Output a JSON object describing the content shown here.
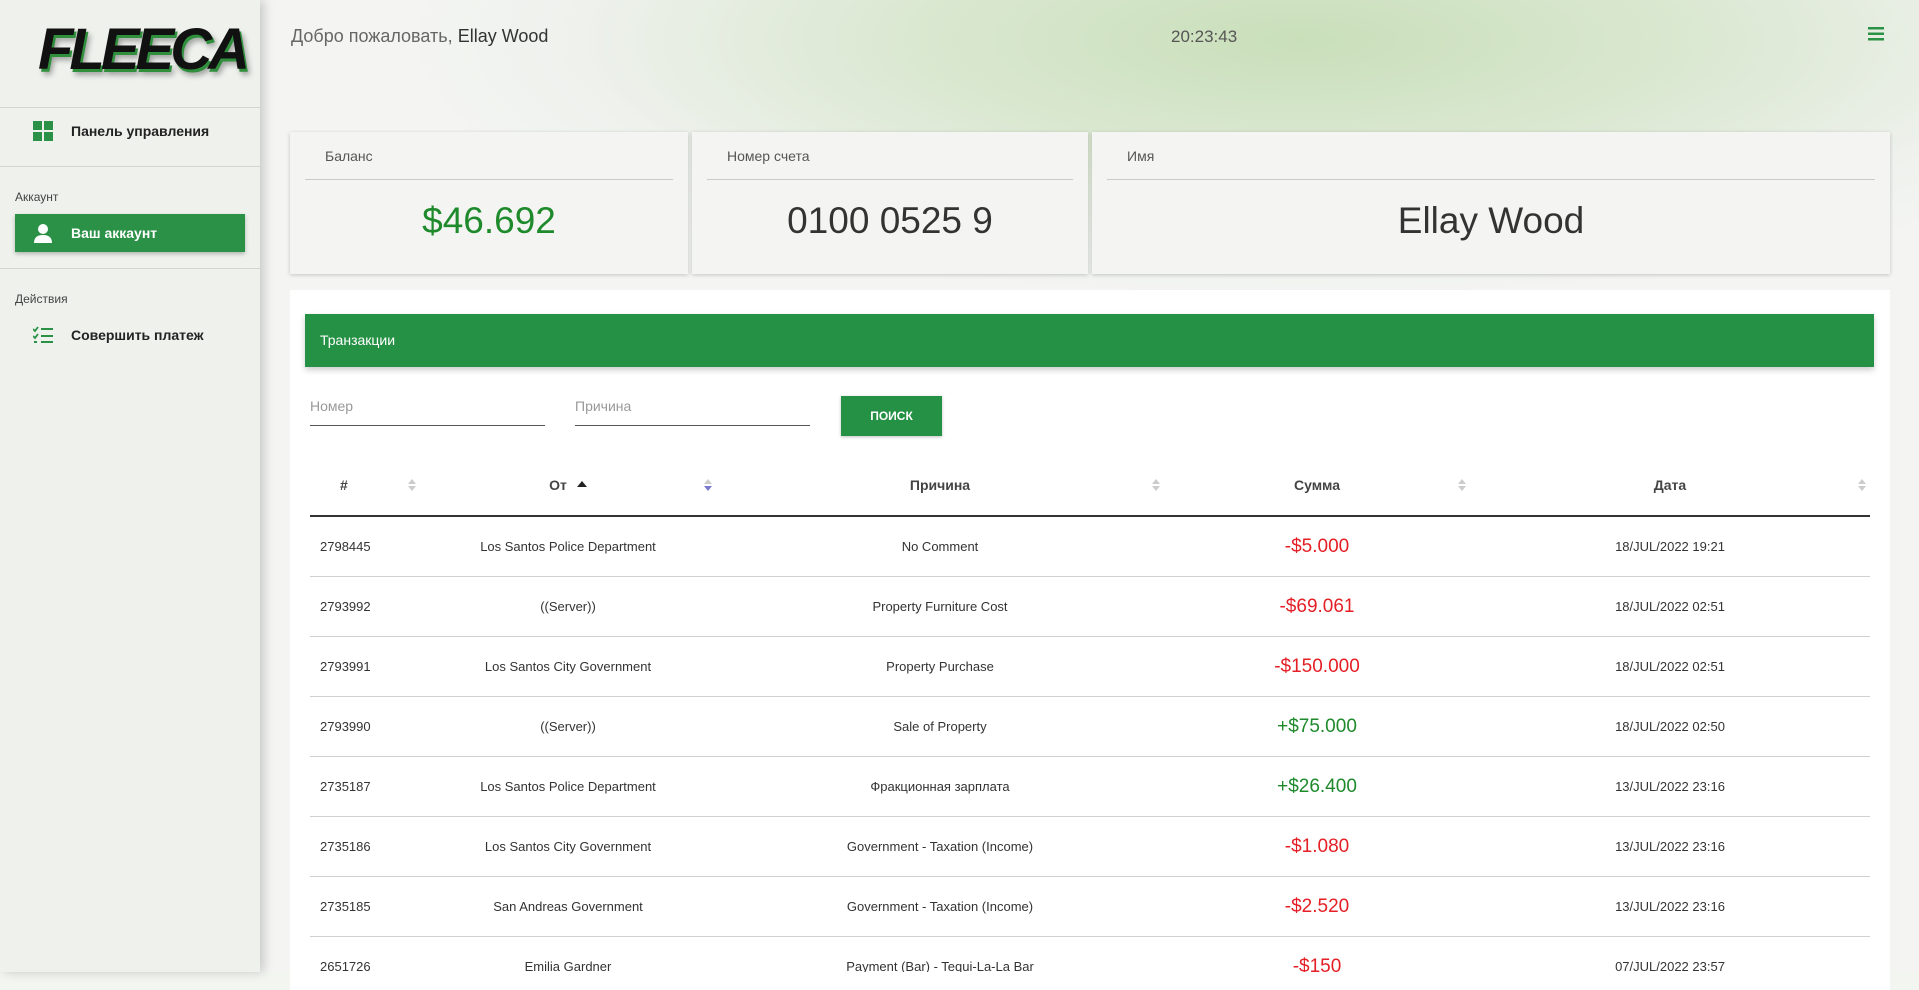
{
  "sidebar": {
    "logo": "FLEECA",
    "dashboard": "Панель управления",
    "account_section": "Аккаунт",
    "account": "Ваш аккаунт",
    "actions_section": "Действия",
    "payment": "Совершить платеж"
  },
  "header": {
    "welcome": "Добро пожаловать,",
    "user": "Ellay Wood",
    "time": "20:23:43"
  },
  "cards": [
    {
      "label": "Баланс",
      "value": "$46.692"
    },
    {
      "label": "Номер счета",
      "value": "0100 0525 9"
    },
    {
      "label": "Имя",
      "value": "Ellay Wood"
    }
  ],
  "transactions": {
    "title": "Транзакции",
    "number_placeholder": "Номер",
    "reason_placeholder": "Причина",
    "search": "ПОИСК",
    "columns": [
      "#",
      "От",
      "Причина",
      "Сумма",
      "Дата"
    ],
    "rows": [
      [
        "2798445",
        "Los Santos Police Department",
        "No Comment",
        "-$5.000",
        "18/JUL/2022 19:21"
      ],
      [
        "2793992",
        "((Server))",
        "Property Furniture Cost",
        "-$69.061",
        "18/JUL/2022 02:51"
      ],
      [
        "2793991",
        "Los Santos City Government",
        "Property Purchase",
        "-$150.000",
        "18/JUL/2022 02:51"
      ],
      [
        "2793990",
        "((Server))",
        "Sale of Property",
        "+$75.000",
        "18/JUL/2022 02:50"
      ],
      [
        "2735187",
        "Los Santos Police Department",
        "Фракционная зарплата",
        "+$26.400",
        "13/JUL/2022 23:16"
      ],
      [
        "2735186",
        "Los Santos City Government",
        "Government - Taxation (Income)",
        "-$1.080",
        "13/JUL/2022 23:16"
      ],
      [
        "2735185",
        "San Andreas Government",
        "Government - Taxation (Income)",
        "-$2.520",
        "13/JUL/2022 23:16"
      ],
      [
        "2651726",
        "Emilia Gardner",
        "Payment (Bar) - Tequi-La-La Bar",
        "-$150",
        "07/JUL/2022 23:57"
      ]
    ]
  }
}
